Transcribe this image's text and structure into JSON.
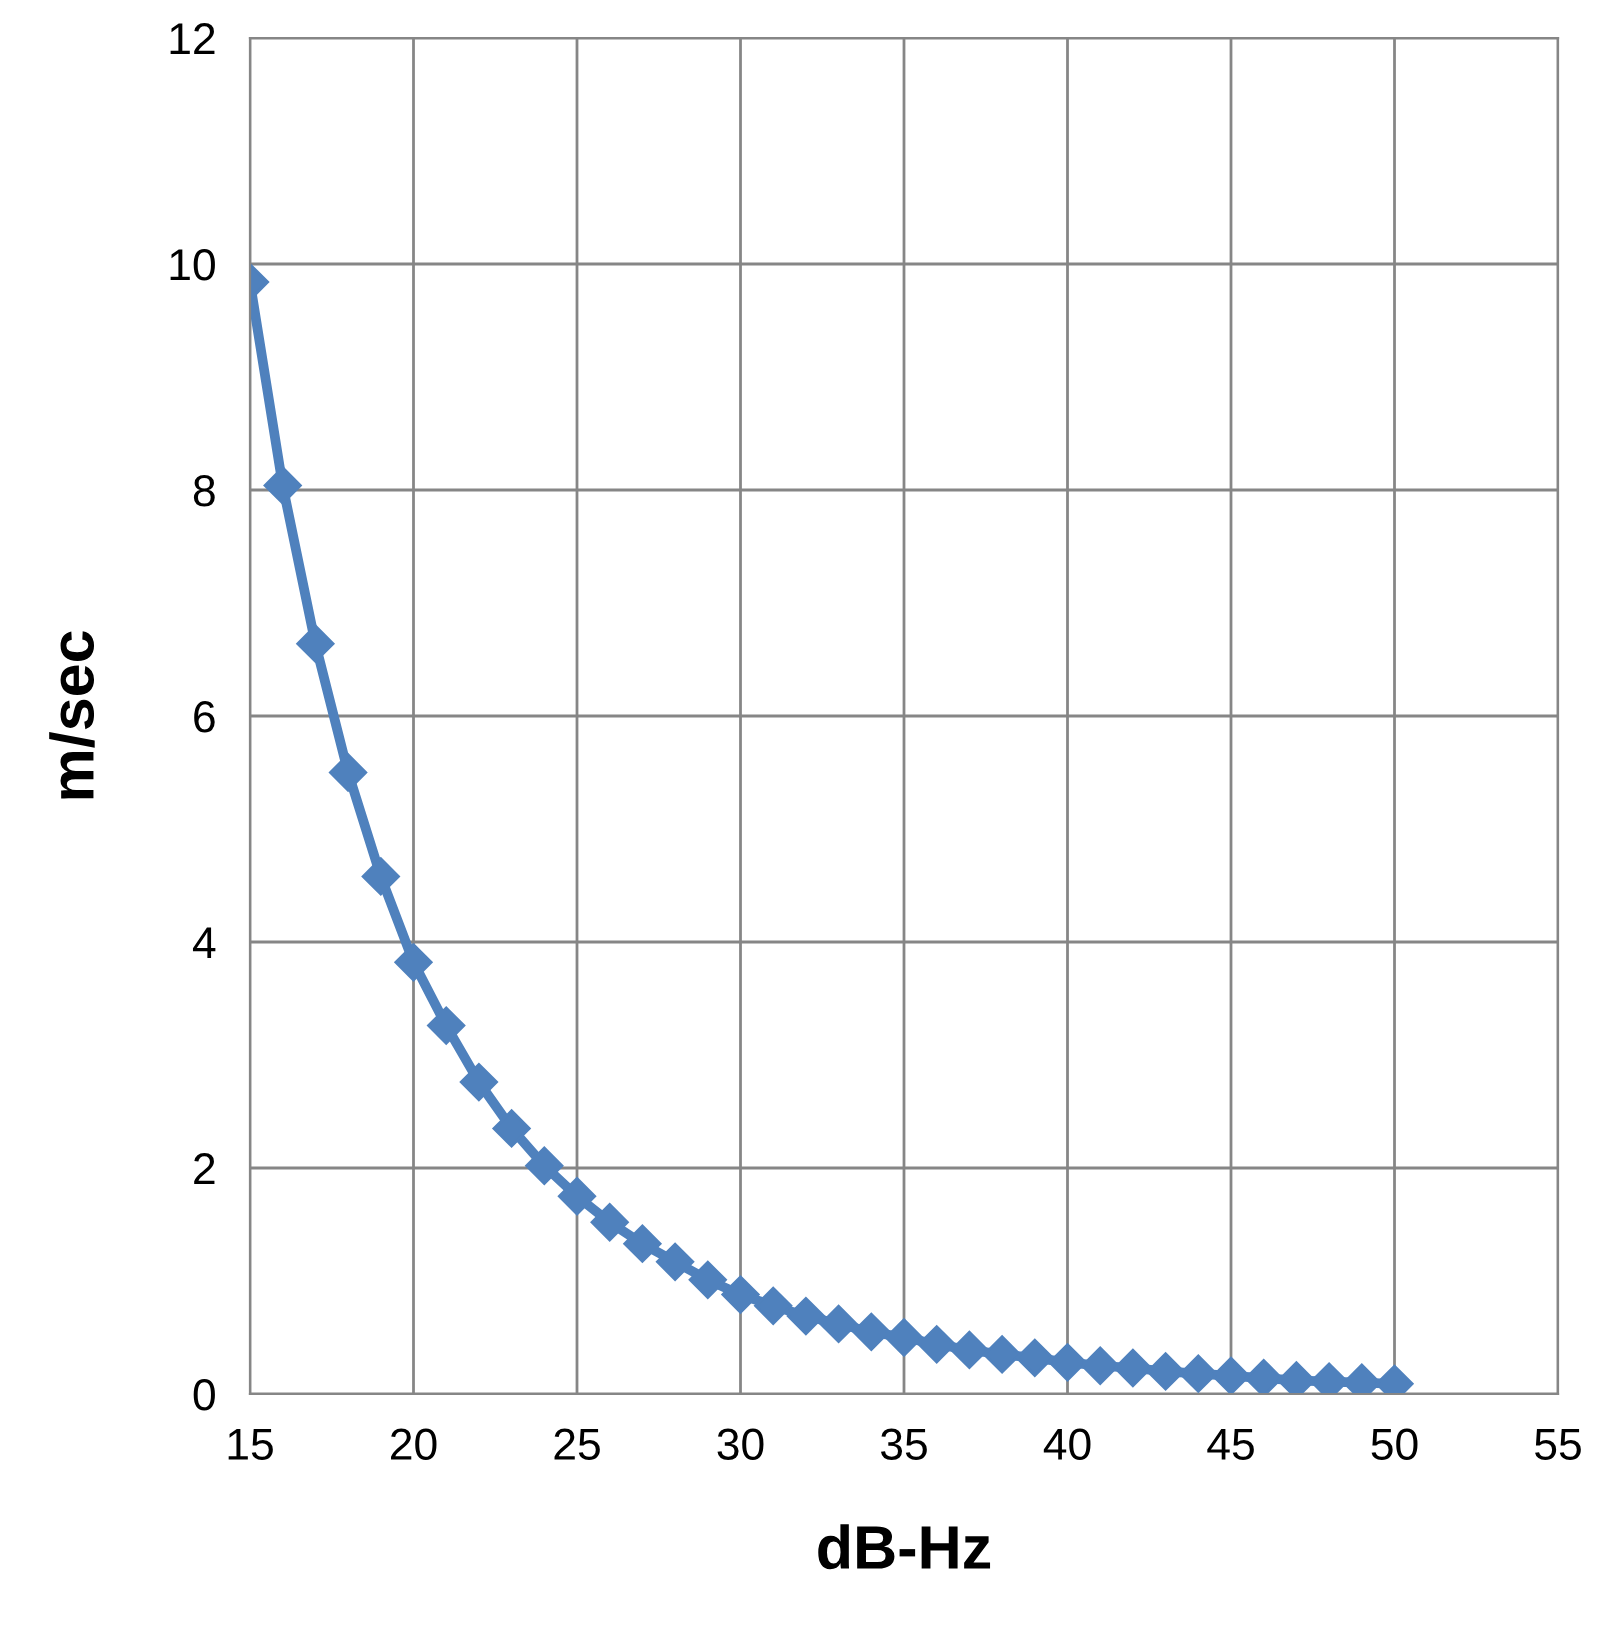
{
  "chart_data": {
    "type": "line",
    "xlabel": "dB-Hz",
    "ylabel": "m/sec",
    "x": [
      15,
      16,
      17,
      18,
      19,
      20,
      21,
      22,
      23,
      24,
      25,
      26,
      27,
      28,
      29,
      30,
      31,
      32,
      33,
      34,
      35,
      36,
      37,
      38,
      39,
      40,
      41,
      42,
      43,
      44,
      45,
      46,
      47,
      48,
      49,
      50
    ],
    "series": [
      {
        "color": "#4f81bd",
        "values": [
          9.84,
          8.04,
          6.64,
          5.5,
          4.58,
          3.82,
          3.26,
          2.76,
          2.35,
          2.02,
          1.75,
          1.52,
          1.33,
          1.17,
          1.01,
          0.88,
          0.78,
          0.69,
          0.62,
          0.55,
          0.5,
          0.44,
          0.39,
          0.35,
          0.32,
          0.28,
          0.25,
          0.23,
          0.2,
          0.18,
          0.16,
          0.14,
          0.12,
          0.11,
          0.1,
          0.09
        ]
      }
    ],
    "xlim": [
      15,
      55
    ],
    "xticks": [
      15,
      20,
      25,
      30,
      35,
      40,
      45,
      50,
      55
    ],
    "ylim": [
      0,
      12
    ],
    "yticks": [
      0,
      2,
      4,
      6,
      8,
      10,
      12
    ],
    "grid": true,
    "marker": "diamond",
    "line_style": "solid"
  }
}
